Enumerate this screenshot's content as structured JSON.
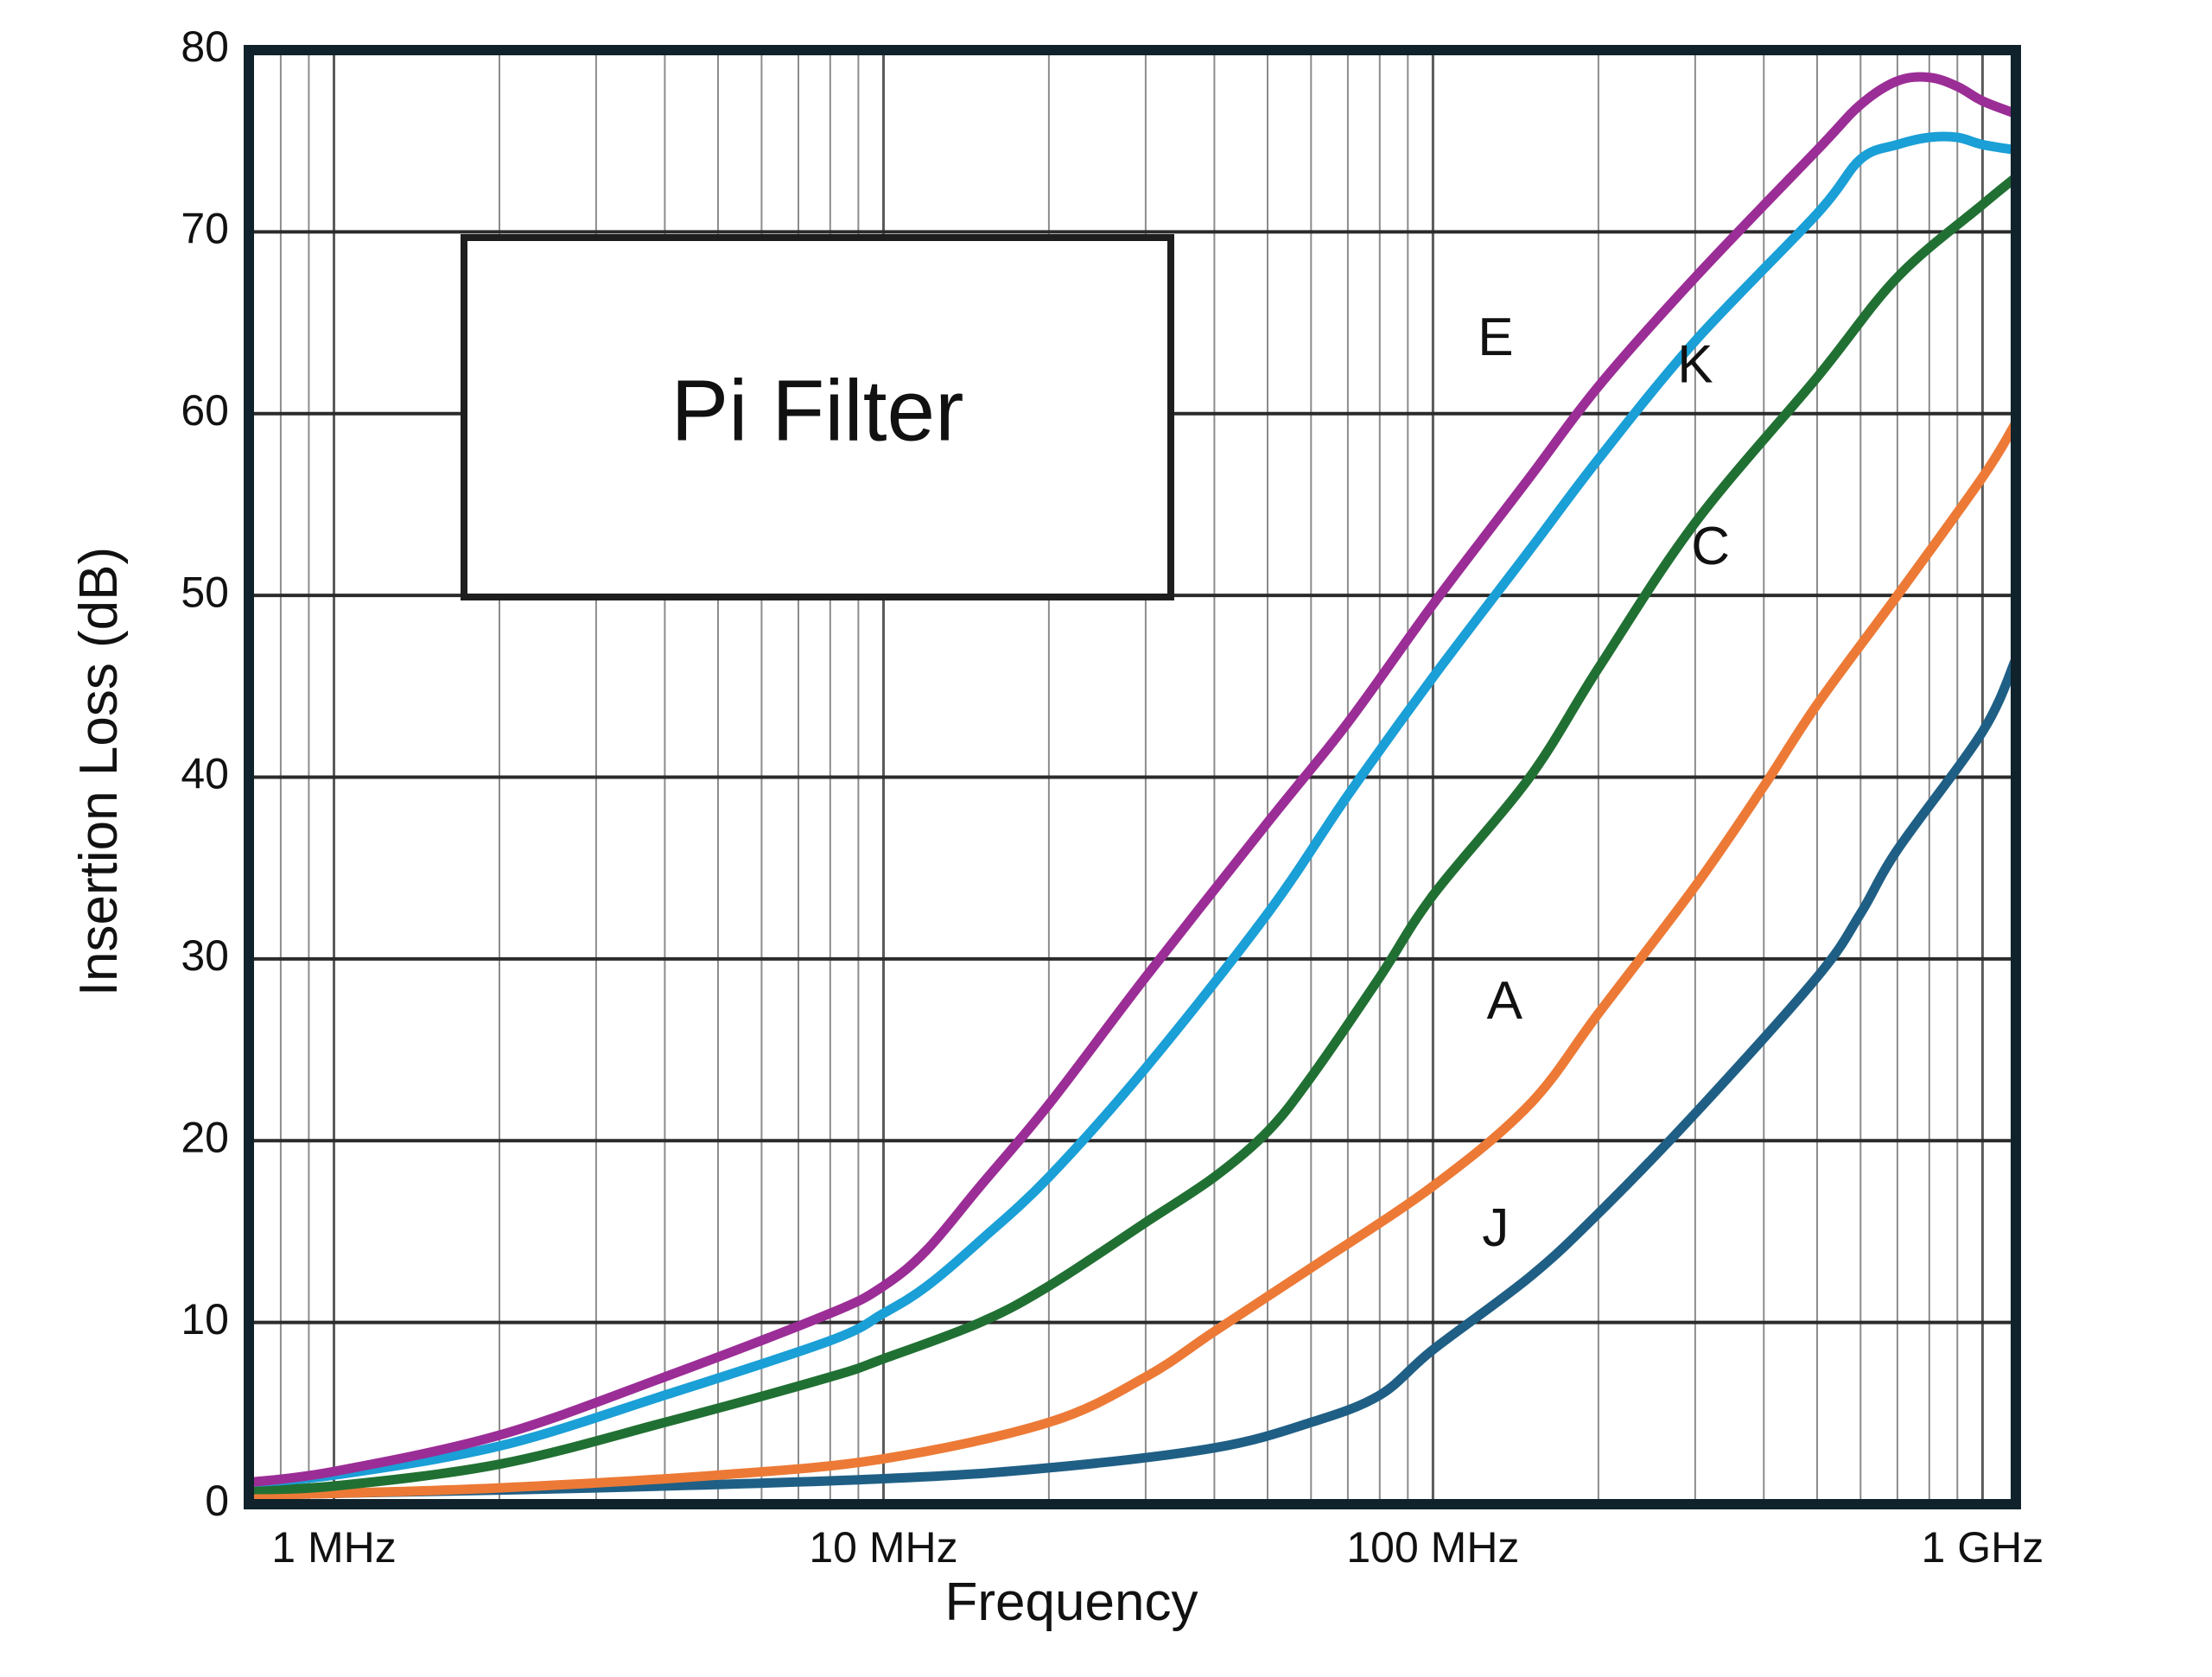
{
  "chart_data": {
    "type": "line",
    "title": "Pi Filter",
    "xlabel": "Frequency",
    "ylabel": "Insertion Loss (dB)",
    "x_scale": "log",
    "x_unit": "Hz",
    "xlim": [
      700000,
      1150000000
    ],
    "ylim": [
      0,
      80
    ],
    "grid": true,
    "y_ticks": [
      0,
      10,
      20,
      30,
      40,
      50,
      60,
      70,
      80
    ],
    "x_ticks": [
      {
        "value": 1000000,
        "label": "1 MHz"
      },
      {
        "value": 10000000,
        "label": "10 MHz"
      },
      {
        "value": 100000000,
        "label": "100 MHz"
      },
      {
        "value": 1000000000,
        "label": "1 GHz"
      }
    ],
    "series": [
      {
        "name": "E",
        "color": "#9b2d96",
        "label_at": [
          130000000,
          64
        ],
        "points": [
          [
            700000,
            1.2
          ],
          [
            1000000,
            1.8
          ],
          [
            2000000,
            3.8
          ],
          [
            4000000,
            7
          ],
          [
            8000000,
            10.5
          ],
          [
            10000000,
            12
          ],
          [
            12000000,
            14
          ],
          [
            15000000,
            17.5
          ],
          [
            20000000,
            22
          ],
          [
            30000000,
            29
          ],
          [
            50000000,
            37.5
          ],
          [
            70000000,
            43
          ],
          [
            100000000,
            49.5
          ],
          [
            150000000,
            56.5
          ],
          [
            200000000,
            61.5
          ],
          [
            300000000,
            67.5
          ],
          [
            500000000,
            74.5
          ],
          [
            600000000,
            77
          ],
          [
            700000000,
            78.3
          ],
          [
            800000000,
            78.5
          ],
          [
            900000000,
            78
          ],
          [
            1000000000,
            77.2
          ],
          [
            1150000000,
            76.5
          ]
        ]
      },
      {
        "name": "K",
        "color": "#1a9fd6",
        "label_at": [
          300000000,
          62.5
        ],
        "points": [
          [
            700000,
            1.2
          ],
          [
            1000000,
            1.6
          ],
          [
            2000000,
            3.2
          ],
          [
            4000000,
            6
          ],
          [
            8000000,
            9
          ],
          [
            10000000,
            10.5
          ],
          [
            12000000,
            12
          ],
          [
            15000000,
            14.5
          ],
          [
            20000000,
            18
          ],
          [
            30000000,
            24
          ],
          [
            50000000,
            32.5
          ],
          [
            70000000,
            39
          ],
          [
            100000000,
            45.5
          ],
          [
            150000000,
            52.5
          ],
          [
            200000000,
            57.5
          ],
          [
            300000000,
            64
          ],
          [
            500000000,
            71
          ],
          [
            600000000,
            74
          ],
          [
            700000000,
            74.8
          ],
          [
            800000000,
            75.2
          ],
          [
            900000000,
            75.2
          ],
          [
            1000000000,
            74.8
          ],
          [
            1150000000,
            74.5
          ]
        ]
      },
      {
        "name": "C",
        "color": "#217033",
        "label_at": [
          320000000,
          52.5
        ],
        "points": [
          [
            700000,
            0.8
          ],
          [
            1000000,
            1
          ],
          [
            2000000,
            2.2
          ],
          [
            4000000,
            4.5
          ],
          [
            8000000,
            7
          ],
          [
            10000000,
            8
          ],
          [
            15000000,
            10
          ],
          [
            20000000,
            12
          ],
          [
            30000000,
            15.5
          ],
          [
            40000000,
            18
          ],
          [
            50000000,
            20.5
          ],
          [
            60000000,
            23.5
          ],
          [
            80000000,
            29
          ],
          [
            100000000,
            33.5
          ],
          [
            150000000,
            40
          ],
          [
            200000000,
            46
          ],
          [
            300000000,
            54
          ],
          [
            500000000,
            62
          ],
          [
            700000000,
            67.5
          ],
          [
            1000000000,
            71.5
          ],
          [
            1150000000,
            73
          ]
        ]
      },
      {
        "name": "A",
        "color": "#ec7a36",
        "label_at": [
          135000000,
          27.5
        ],
        "points": [
          [
            700000,
            0.5
          ],
          [
            1000000,
            0.6
          ],
          [
            2000000,
            0.9
          ],
          [
            5000000,
            1.6
          ],
          [
            10000000,
            2.5
          ],
          [
            20000000,
            4.5
          ],
          [
            30000000,
            7
          ],
          [
            40000000,
            9.5
          ],
          [
            60000000,
            13
          ],
          [
            100000000,
            17.5
          ],
          [
            150000000,
            22
          ],
          [
            200000000,
            27
          ],
          [
            300000000,
            34
          ],
          [
            400000000,
            39.5
          ],
          [
            500000000,
            44
          ],
          [
            700000000,
            50
          ],
          [
            1000000000,
            56.5
          ],
          [
            1150000000,
            59.5
          ]
        ]
      },
      {
        "name": "J",
        "color": "#1f5f85",
        "label_at": [
          130000000,
          15
        ],
        "points": [
          [
            700000,
            0.5
          ],
          [
            1000000,
            0.6
          ],
          [
            3000000,
            0.9
          ],
          [
            10000000,
            1.4
          ],
          [
            20000000,
            2
          ],
          [
            40000000,
            3.1
          ],
          [
            60000000,
            4.5
          ],
          [
            80000000,
            6
          ],
          [
            100000000,
            8.5
          ],
          [
            150000000,
            12.5
          ],
          [
            200000000,
            16
          ],
          [
            300000000,
            21.5
          ],
          [
            500000000,
            29
          ],
          [
            600000000,
            32.5
          ],
          [
            700000000,
            36
          ],
          [
            1000000000,
            42.5
          ],
          [
            1150000000,
            46.5
          ]
        ]
      }
    ]
  }
}
